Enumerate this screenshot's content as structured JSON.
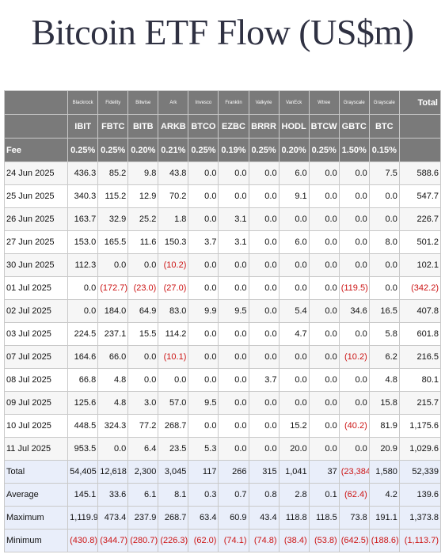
{
  "title": "Bitcoin ETF Flow (US$m)",
  "header": {
    "issuers": [
      "Blackrock",
      "Fidelity",
      "Bitwise",
      "Ark",
      "Invesco",
      "Franklin",
      "Valkyrie",
      "VanEck",
      "Wtree",
      "Grayscale",
      "Grayscale"
    ],
    "tickers": [
      "IBIT",
      "FBTC",
      "BITB",
      "ARKB",
      "BTCO",
      "EZBC",
      "BRRR",
      "HODL",
      "BTCW",
      "GBTC",
      "BTC"
    ],
    "total_label": "Total"
  },
  "fee": {
    "label": "Fee",
    "values": [
      "0.25%",
      "0.25%",
      "0.20%",
      "0.21%",
      "0.25%",
      "0.19%",
      "0.25%",
      "0.20%",
      "0.25%",
      "1.50%",
      "0.15%"
    ]
  },
  "rows": [
    {
      "date": "24 Jun 2025",
      "values": [
        "436.3",
        "85.2",
        "9.8",
        "43.8",
        "0.0",
        "0.0",
        "0.0",
        "6.0",
        "0.0",
        "0.0",
        "7.5"
      ],
      "total": "588.6"
    },
    {
      "date": "25 Jun 2025",
      "values": [
        "340.3",
        "115.2",
        "12.9",
        "70.2",
        "0.0",
        "0.0",
        "0.0",
        "9.1",
        "0.0",
        "0.0",
        "0.0"
      ],
      "total": "547.7"
    },
    {
      "date": "26 Jun 2025",
      "values": [
        "163.7",
        "32.9",
        "25.2",
        "1.8",
        "0.0",
        "3.1",
        "0.0",
        "0.0",
        "0.0",
        "0.0",
        "0.0"
      ],
      "total": "226.7"
    },
    {
      "date": "27 Jun 2025",
      "values": [
        "153.0",
        "165.5",
        "11.6",
        "150.3",
        "3.7",
        "3.1",
        "0.0",
        "6.0",
        "0.0",
        "0.0",
        "8.0"
      ],
      "total": "501.2"
    },
    {
      "date": "30 Jun 2025",
      "values": [
        "112.3",
        "0.0",
        "0.0",
        "(10.2)",
        "0.0",
        "0.0",
        "0.0",
        "0.0",
        "0.0",
        "0.0",
        "0.0"
      ],
      "total": "102.1"
    },
    {
      "date": "01 Jul 2025",
      "values": [
        "0.0",
        "(172.7)",
        "(23.0)",
        "(27.0)",
        "0.0",
        "0.0",
        "0.0",
        "0.0",
        "0.0",
        "(119.5)",
        "0.0"
      ],
      "total": "(342.2)"
    },
    {
      "date": "02 Jul 2025",
      "values": [
        "0.0",
        "184.0",
        "64.9",
        "83.0",
        "9.9",
        "9.5",
        "0.0",
        "5.4",
        "0.0",
        "34.6",
        "16.5"
      ],
      "total": "407.8"
    },
    {
      "date": "03 Jul 2025",
      "values": [
        "224.5",
        "237.1",
        "15.5",
        "114.2",
        "0.0",
        "0.0",
        "0.0",
        "4.7",
        "0.0",
        "0.0",
        "5.8"
      ],
      "total": "601.8"
    },
    {
      "date": "07 Jul 2025",
      "values": [
        "164.6",
        "66.0",
        "0.0",
        "(10.1)",
        "0.0",
        "0.0",
        "0.0",
        "0.0",
        "0.0",
        "(10.2)",
        "6.2"
      ],
      "total": "216.5"
    },
    {
      "date": "08 Jul 2025",
      "values": [
        "66.8",
        "4.8",
        "0.0",
        "0.0",
        "0.0",
        "0.0",
        "3.7",
        "0.0",
        "0.0",
        "0.0",
        "4.8"
      ],
      "total": "80.1"
    },
    {
      "date": "09 Jul 2025",
      "values": [
        "125.6",
        "4.8",
        "3.0",
        "57.0",
        "9.5",
        "0.0",
        "0.0",
        "0.0",
        "0.0",
        "0.0",
        "15.8"
      ],
      "total": "215.7"
    },
    {
      "date": "10 Jul 2025",
      "values": [
        "448.5",
        "324.3",
        "77.2",
        "268.7",
        "0.0",
        "0.0",
        "0.0",
        "15.2",
        "0.0",
        "(40.2)",
        "81.9"
      ],
      "total": "1,175.6"
    },
    {
      "date": "11 Jul 2025",
      "values": [
        "953.5",
        "0.0",
        "6.4",
        "23.5",
        "5.3",
        "0.0",
        "0.0",
        "20.0",
        "0.0",
        "0.0",
        "20.9"
      ],
      "total": "1,029.6"
    }
  ],
  "summary": [
    {
      "label": "Total",
      "values": [
        "54,405",
        "12,618",
        "2,300",
        "3,045",
        "117",
        "266",
        "315",
        "1,041",
        "37",
        "(23,384)",
        "1,580"
      ],
      "total": "52,339"
    },
    {
      "label": "Average",
      "values": [
        "145.1",
        "33.6",
        "6.1",
        "8.1",
        "0.3",
        "0.7",
        "0.8",
        "2.8",
        "0.1",
        "(62.4)",
        "4.2"
      ],
      "total": "139.6"
    },
    {
      "label": "Maximum",
      "values": [
        "1,119.9",
        "473.4",
        "237.9",
        "268.7",
        "63.4",
        "60.9",
        "43.4",
        "118.8",
        "118.5",
        "73.8",
        "191.1"
      ],
      "total": "1,373.8"
    },
    {
      "label": "Minimum",
      "values": [
        "(430.8)",
        "(344.7)",
        "(280.7)",
        "(226.3)",
        "(62.0)",
        "(74.1)",
        "(74.8)",
        "(38.4)",
        "(53.8)",
        "(642.5)",
        "(188.6)"
      ],
      "total": "(1,113.7)"
    }
  ],
  "chart_data": {
    "type": "table",
    "title": "Bitcoin ETF Flow (US$m)",
    "columns": [
      "IBIT",
      "FBTC",
      "BITB",
      "ARKB",
      "BTCO",
      "EZBC",
      "BRRR",
      "HODL",
      "BTCW",
      "GBTC",
      "BTC",
      "Total"
    ],
    "issuers": [
      "Blackrock",
      "Fidelity",
      "Bitwise",
      "Ark",
      "Invesco",
      "Franklin",
      "Valkyrie",
      "VanEck",
      "Wtree",
      "Grayscale",
      "Grayscale"
    ],
    "negative_color": "#cc1414",
    "header_color": "#7a7a7a",
    "summary_color": "#e9eefa"
  }
}
